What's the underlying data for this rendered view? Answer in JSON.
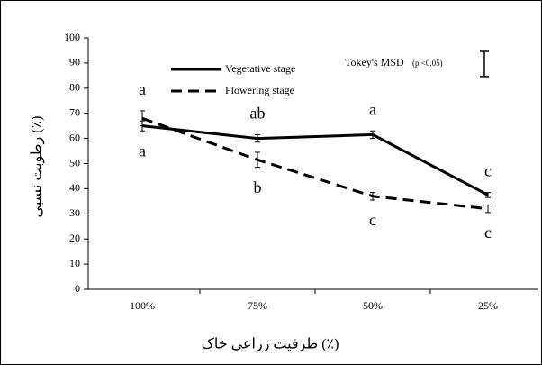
{
  "chart_data": {
    "type": "line",
    "xlabel": "ظرفیت زراعی خاک (٪)",
    "ylabel": "رطوبت نسبی (٪)",
    "categories": [
      "100%",
      "75%",
      "50%",
      "25%"
    ],
    "series": [
      {
        "name": "Vegetative stage",
        "color": "#000000",
        "dash": false,
        "values": [
          65,
          60,
          61.5,
          37.5
        ],
        "errors": [
          2,
          1.5,
          1.5,
          1
        ],
        "letters": [
          "a",
          "ab",
          "a",
          "c"
        ]
      },
      {
        "name": "Flowering stage",
        "color": "#000000",
        "dash": true,
        "values": [
          68,
          51.5,
          37,
          32
        ],
        "errors": [
          3,
          3,
          1.5,
          1.5
        ],
        "letters": [
          "a",
          "b",
          "c",
          "c"
        ]
      }
    ],
    "ylim": [
      0,
      100
    ],
    "yticks": [
      0,
      10,
      20,
      30,
      40,
      50,
      60,
      70,
      80,
      90,
      100
    ],
    "grid": false,
    "legend": "upper left",
    "msd": {
      "label": "Tokey's MSD",
      "note": "(p <0.05)",
      "value": 10
    }
  }
}
